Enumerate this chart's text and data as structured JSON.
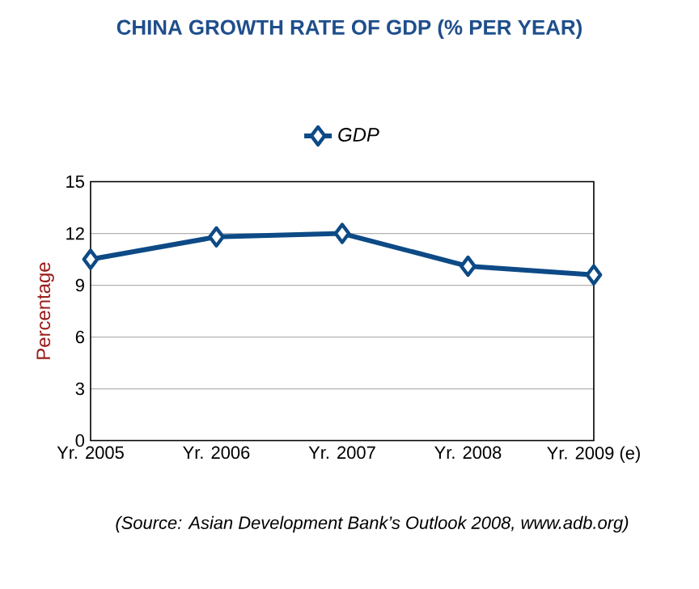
{
  "chart_data": {
    "type": "line",
    "title": "CHINA GROWTH RATE OF GDP (% PER YEAR)",
    "ylabel": "Percentage",
    "categories": [
      "Yr. 2005",
      "Yr. 2006",
      "Yr. 2007",
      "Yr. 2008",
      "Yr. 2009 (e)"
    ],
    "series": [
      {
        "name": "GDP",
        "color": "#0d4a86",
        "values": [
          10.5,
          11.8,
          12.0,
          10.1,
          9.6
        ]
      }
    ],
    "ylim": [
      0,
      15
    ],
    "yticks": [
      0,
      3,
      6,
      9,
      12,
      15
    ],
    "grid": "y",
    "legend": "top",
    "marker": "diamond",
    "line_style": "solid",
    "annotations": [
      "(Source: Asian Development Bank’s Outlook 2008, www.adb.org)"
    ]
  }
}
